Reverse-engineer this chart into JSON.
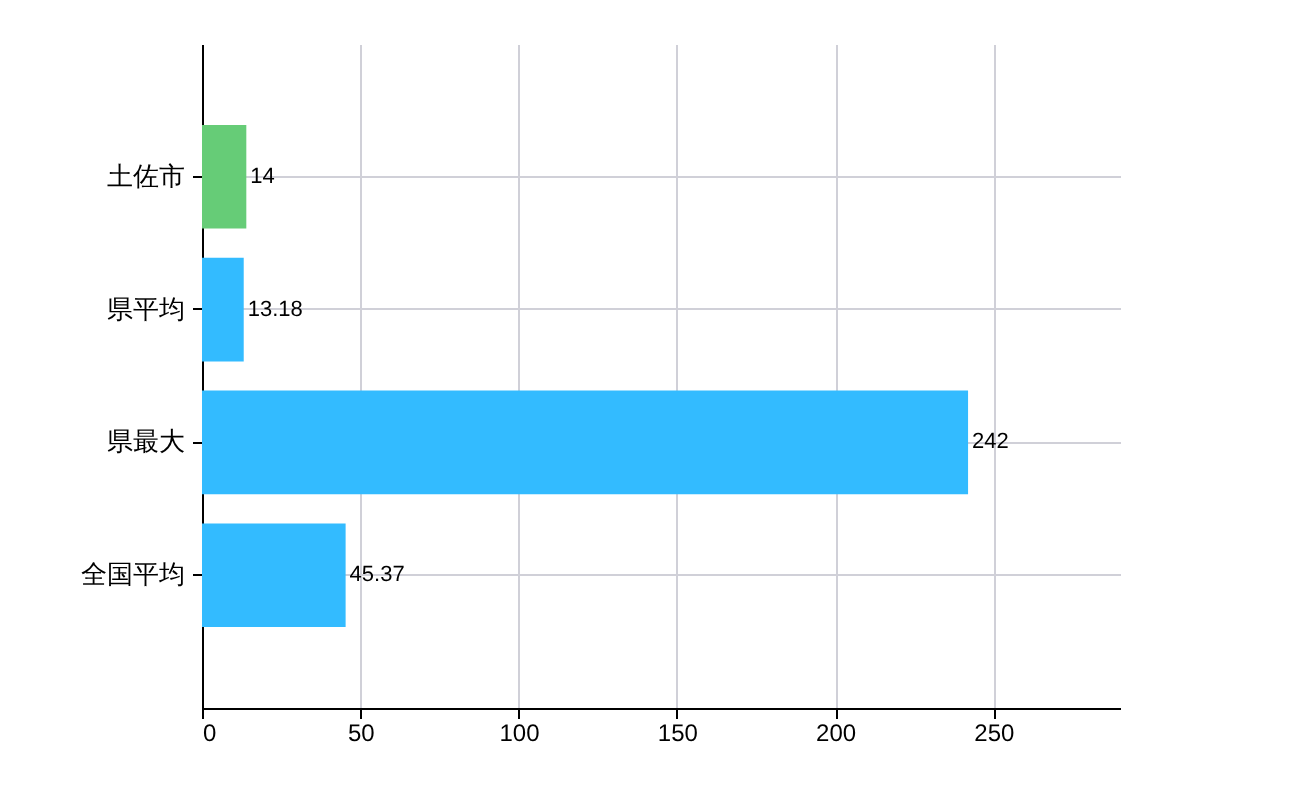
{
  "chart_data": {
    "type": "bar",
    "orientation": "horizontal",
    "categories": [
      "土佐市",
      "県平均",
      "県最大",
      "全国平均"
    ],
    "values": [
      14,
      13.18,
      242,
      45.37
    ],
    "colors": [
      "#66cc77",
      "#33bbff",
      "#33bbff",
      "#33bbff"
    ],
    "xlim": [
      0,
      290
    ],
    "xticks": [
      0,
      50,
      100,
      150,
      200,
      250
    ],
    "grid": true,
    "data_labels": true
  }
}
